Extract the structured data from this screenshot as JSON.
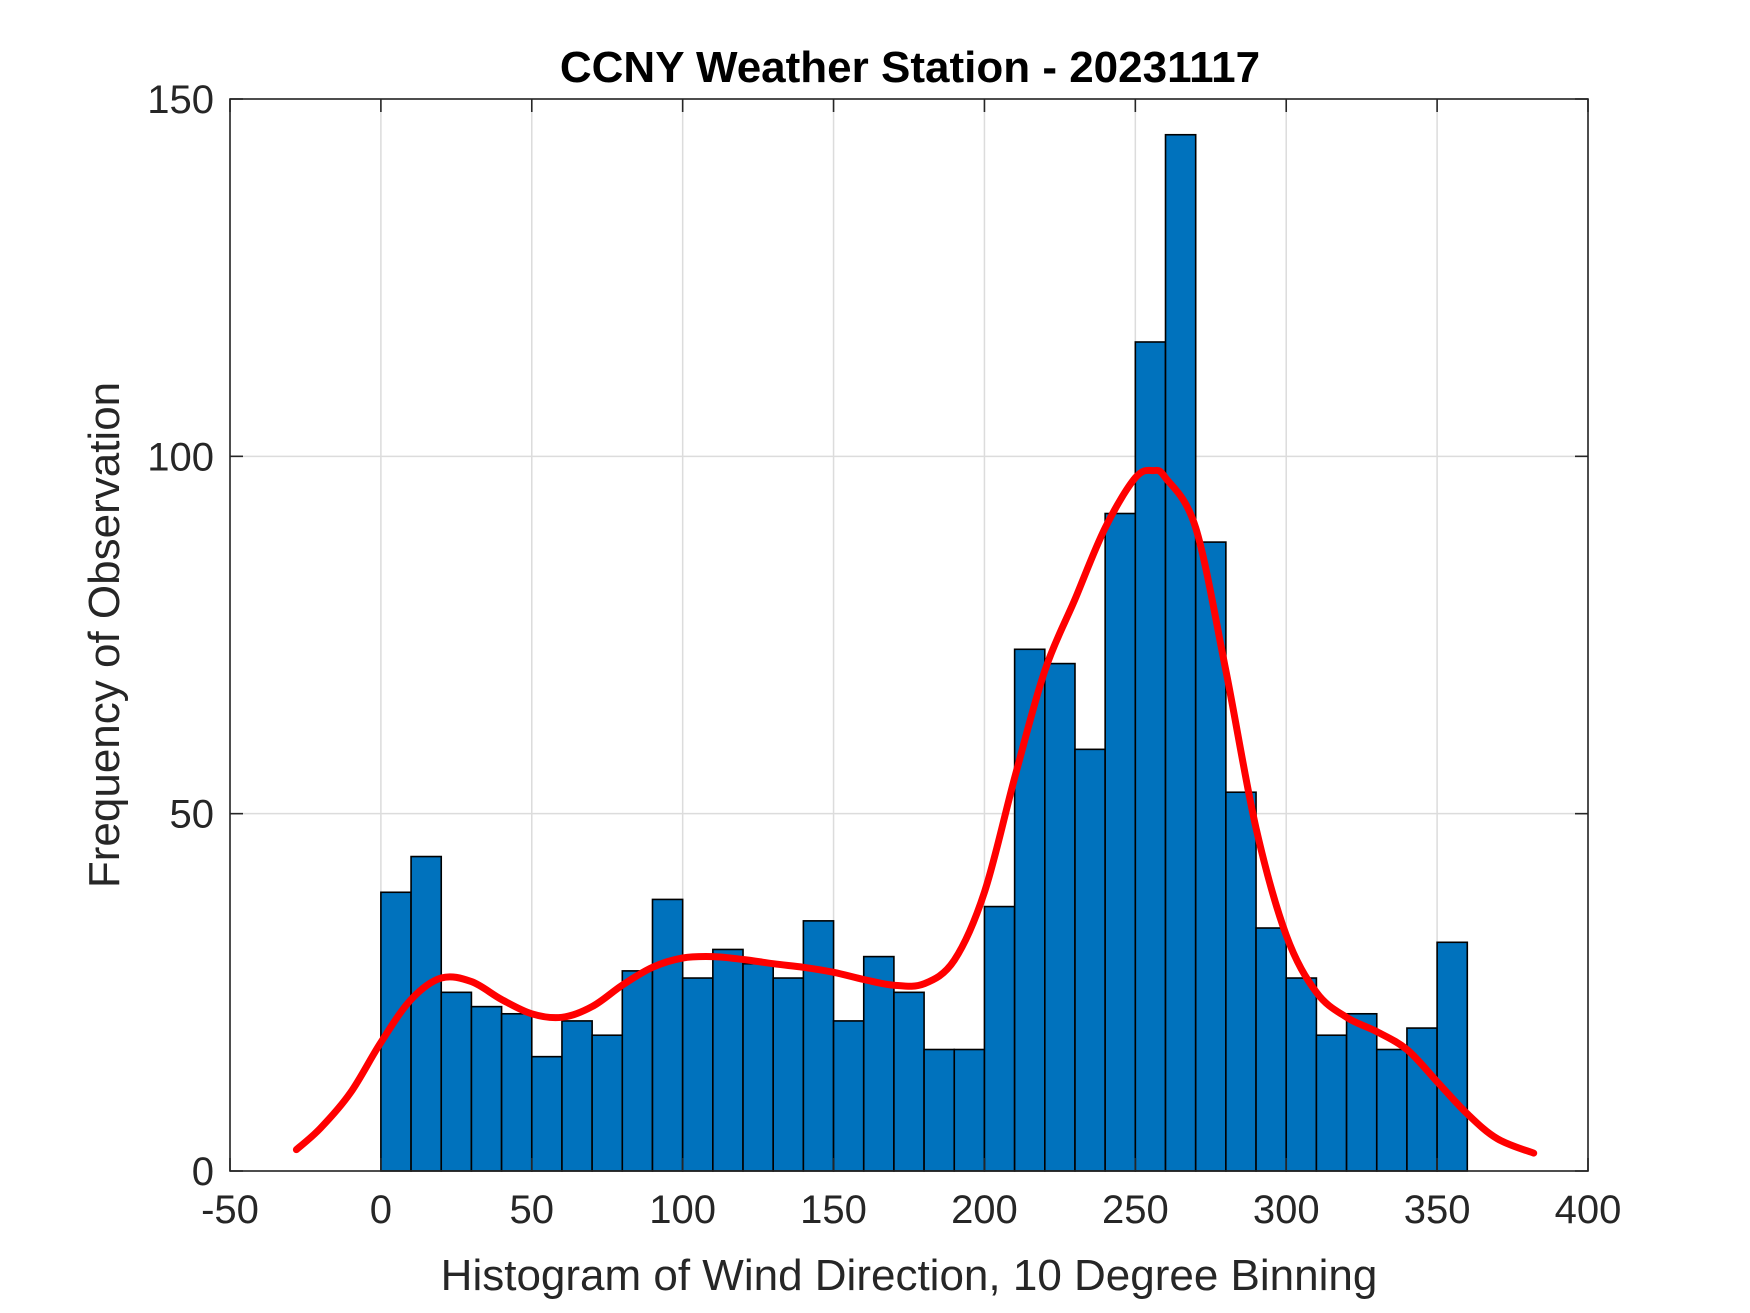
{
  "chart_data": {
    "type": "bar",
    "title": "CCNY Weather Station - 20231117",
    "xlabel": "Histogram of Wind Direction, 10 Degree Binning",
    "ylabel": "Frequency of Observation",
    "xlim": [
      -50,
      400
    ],
    "ylim": [
      0,
      150
    ],
    "xticks": [
      -50,
      0,
      50,
      100,
      150,
      200,
      250,
      300,
      350,
      400
    ],
    "yticks": [
      0,
      50,
      100,
      150
    ],
    "grid": true,
    "bin_width": 10,
    "bin_edges_start": [
      0,
      10,
      20,
      30,
      40,
      50,
      60,
      70,
      80,
      90,
      100,
      110,
      120,
      130,
      140,
      150,
      160,
      170,
      180,
      190,
      200,
      210,
      220,
      230,
      240,
      250,
      260,
      270,
      280,
      290,
      300,
      310,
      320,
      330,
      340,
      350
    ],
    "values": [
      39,
      44,
      25,
      23,
      22,
      16,
      21,
      19,
      28,
      38,
      27,
      31,
      29,
      27,
      35,
      21,
      30,
      25,
      17,
      17,
      37,
      73,
      71,
      59,
      92,
      116,
      145,
      88,
      53,
      34,
      27,
      19,
      22,
      17,
      20,
      32
    ],
    "bar_color": "#0072BD",
    "bar_edge_color": "#000000",
    "fit_curve": {
      "name": "density fit",
      "color": "#FF0000",
      "x": [
        -28,
        -20,
        -10,
        0,
        10,
        20,
        30,
        40,
        50,
        60,
        70,
        80,
        90,
        100,
        110,
        120,
        130,
        140,
        150,
        160,
        170,
        180,
        190,
        200,
        210,
        220,
        230,
        240,
        250,
        256,
        260,
        270,
        280,
        290,
        300,
        310,
        320,
        330,
        340,
        350,
        360,
        370,
        382
      ],
      "y": [
        3,
        6,
        11,
        18,
        24,
        27,
        26.5,
        24,
        22,
        21.5,
        23,
        26,
        28.5,
        29.8,
        30,
        29.6,
        29,
        28.5,
        27.8,
        26.8,
        26,
        26.2,
        29.5,
        39,
        55,
        70,
        80,
        90,
        97,
        98,
        97,
        90,
        70,
        48,
        33,
        25,
        21.5,
        19.5,
        17,
        12.5,
        8,
        4.5,
        2.5
      ]
    }
  }
}
